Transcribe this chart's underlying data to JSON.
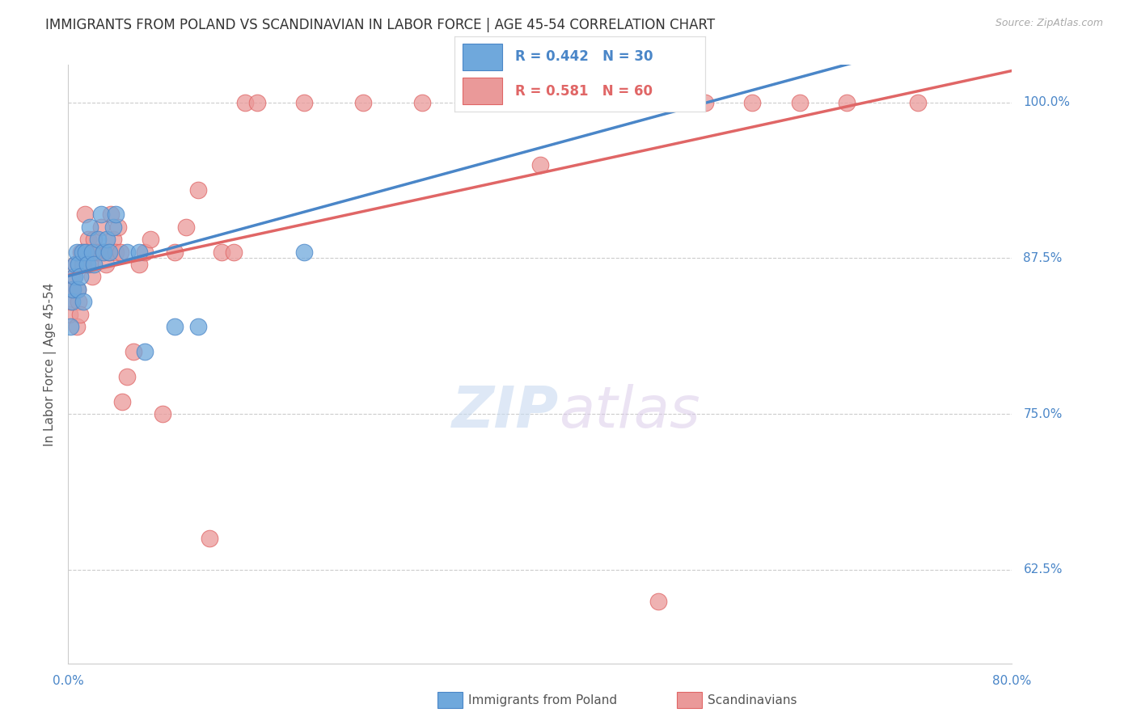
{
  "title": "IMMIGRANTS FROM POLAND VS SCANDINAVIAN IN LABOR FORCE | AGE 45-54 CORRELATION CHART",
  "source": "Source: ZipAtlas.com",
  "ylabel": "In Labor Force | Age 45-54",
  "ytick_labels": [
    "100.0%",
    "87.5%",
    "75.0%",
    "62.5%"
  ],
  "ytick_values": [
    1.0,
    0.875,
    0.75,
    0.625
  ],
  "xlim": [
    0.0,
    0.8
  ],
  "ylim": [
    0.55,
    1.03
  ],
  "poland_R": 0.442,
  "poland_N": 30,
  "scand_R": 0.581,
  "scand_N": 60,
  "poland_color": "#6fa8dc",
  "poland_color_line": "#4a86c8",
  "scand_color": "#ea9999",
  "scand_color_line": "#e06666",
  "poland_x": [
    0.002,
    0.003,
    0.004,
    0.005,
    0.006,
    0.007,
    0.008,
    0.009,
    0.01,
    0.012,
    0.013,
    0.015,
    0.016,
    0.018,
    0.02,
    0.022,
    0.025,
    0.028,
    0.03,
    0.033,
    0.035,
    0.038,
    0.04,
    0.05,
    0.06,
    0.065,
    0.09,
    0.11,
    0.2,
    0.35
  ],
  "poland_y": [
    0.82,
    0.84,
    0.85,
    0.86,
    0.87,
    0.88,
    0.85,
    0.87,
    0.86,
    0.88,
    0.84,
    0.88,
    0.87,
    0.9,
    0.88,
    0.87,
    0.89,
    0.91,
    0.88,
    0.89,
    0.88,
    0.9,
    0.91,
    0.88,
    0.88,
    0.8,
    0.82,
    0.82,
    0.88,
    1.0
  ],
  "scand_x": [
    0.001,
    0.002,
    0.003,
    0.004,
    0.005,
    0.006,
    0.007,
    0.008,
    0.009,
    0.01,
    0.011,
    0.012,
    0.013,
    0.014,
    0.015,
    0.016,
    0.017,
    0.018,
    0.02,
    0.022,
    0.024,
    0.026,
    0.028,
    0.03,
    0.032,
    0.034,
    0.036,
    0.038,
    0.04,
    0.042,
    0.044,
    0.046,
    0.05,
    0.055,
    0.06,
    0.065,
    0.07,
    0.08,
    0.09,
    0.1,
    0.11,
    0.12,
    0.13,
    0.14,
    0.15,
    0.16,
    0.2,
    0.25,
    0.3,
    0.35,
    0.38,
    0.4,
    0.42,
    0.44,
    0.5,
    0.54,
    0.58,
    0.62,
    0.66,
    0.72
  ],
  "scand_y": [
    0.83,
    0.84,
    0.85,
    0.85,
    0.86,
    0.87,
    0.82,
    0.85,
    0.84,
    0.83,
    0.88,
    0.87,
    0.87,
    0.91,
    0.88,
    0.88,
    0.89,
    0.87,
    0.86,
    0.89,
    0.88,
    0.88,
    0.9,
    0.88,
    0.87,
    0.88,
    0.91,
    0.89,
    0.88,
    0.9,
    0.88,
    0.76,
    0.78,
    0.8,
    0.87,
    0.88,
    0.89,
    0.75,
    0.88,
    0.9,
    0.93,
    0.65,
    0.88,
    0.88,
    1.0,
    1.0,
    1.0,
    1.0,
    1.0,
    1.0,
    1.0,
    0.95,
    1.0,
    1.0,
    0.6,
    1.0,
    1.0,
    1.0,
    1.0,
    1.0
  ],
  "watermark_zip": "ZIP",
  "watermark_atlas": "atlas",
  "background_color": "#ffffff",
  "grid_color": "#cccccc",
  "label_color": "#4a86c8",
  "title_color": "#333333"
}
